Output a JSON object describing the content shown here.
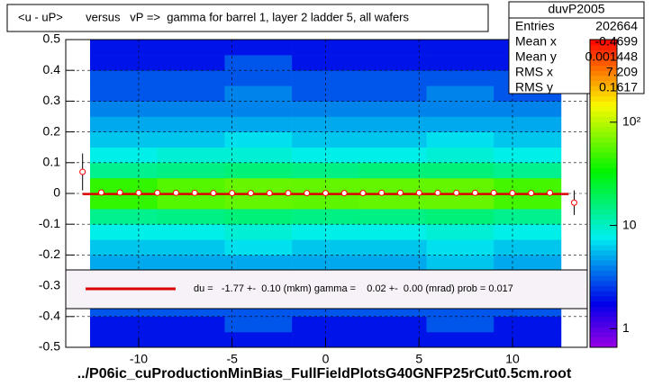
{
  "chart_data": {
    "type": "heatmap",
    "title": "<u - uP>       versus   vP =>  gamma for barrel 1, layer 2 ladder 5, all wafers",
    "x_label": "../P06ic_cuProductionMinBias_FullFieldPlotsG40GNFP25rCut0.5cm.root",
    "xlim": [
      -13.9,
      14.0
    ],
    "ylim": [
      -0.5,
      0.5
    ],
    "xticks": [
      -10,
      -5,
      0,
      5,
      10
    ],
    "yticks": [
      -0.5,
      -0.4,
      -0.3,
      -0.2,
      -0.1,
      0,
      0.1,
      0.2,
      0.3,
      0.4,
      0.5
    ],
    "grid": true,
    "zlim": [
      0.66,
      631
    ],
    "zlog": true,
    "zticks": [
      1,
      10,
      {
        "value": 100,
        "label": "10²"
      }
    ],
    "x_bins": [
      -12.6,
      -9,
      -5.4,
      -1.8,
      1.8,
      5.4,
      9,
      12.6
    ],
    "y_bins": [
      -0.5,
      -0.45,
      -0.4,
      -0.35,
      -0.3,
      -0.25,
      -0.2,
      -0.15,
      -0.1,
      -0.05,
      0,
      0.05,
      0.1,
      0.15,
      0.2,
      0.25,
      0.3,
      0.35,
      0.4,
      0.45,
      0.5
    ],
    "z": [
      [
        2,
        2,
        2,
        2,
        2,
        2,
        2
      ],
      [
        2,
        2,
        3,
        2,
        2,
        3,
        2
      ],
      [
        3,
        3,
        3,
        3,
        3,
        3,
        3
      ],
      [
        3,
        3,
        4,
        4,
        3,
        4,
        3
      ],
      [
        4,
        4,
        4,
        4,
        4,
        4,
        4
      ],
      [
        5,
        5,
        5,
        5,
        5,
        6,
        5
      ],
      [
        6,
        6,
        7,
        6,
        6,
        7,
        6
      ],
      [
        8,
        8,
        9,
        8,
        8,
        9,
        8
      ],
      [
        14,
        15,
        16,
        15,
        15,
        16,
        14
      ],
      [
        45,
        55,
        60,
        58,
        60,
        62,
        50
      ],
      [
        45,
        55,
        62,
        60,
        60,
        60,
        50
      ],
      [
        14,
        15,
        16,
        15,
        16,
        16,
        14
      ],
      [
        8,
        9,
        9,
        8,
        8,
        9,
        8
      ],
      [
        6,
        6,
        7,
        6,
        6,
        7,
        6
      ],
      [
        5,
        5,
        5,
        5,
        5,
        5,
        5
      ],
      [
        4,
        4,
        4,
        4,
        4,
        4,
        4
      ],
      [
        3,
        3,
        4,
        3,
        3,
        4,
        3
      ],
      [
        3,
        3,
        3,
        3,
        3,
        3,
        3
      ],
      [
        2,
        2,
        3,
        2,
        2,
        2,
        2
      ],
      [
        2,
        2,
        2,
        2,
        2,
        2,
        2
      ]
    ],
    "profile": {
      "color": "#ff0000",
      "x": [
        -13,
        -12,
        -11,
        -10,
        -9,
        -8,
        -7,
        -6,
        -5,
        -4,
        -3,
        -2,
        -1,
        0,
        1,
        2,
        3,
        4,
        5,
        6,
        7,
        8,
        9,
        10,
        11,
        12,
        13.3
      ],
      "values": [
        0.07,
        0.003,
        0.003,
        0.002,
        0.002,
        0.002,
        0.002,
        0.001,
        0.001,
        0.001,
        0.001,
        0.001,
        0.001,
        0.001,
        0.001,
        0.001,
        0.002,
        0.002,
        0.002,
        0.002,
        0.002,
        0.002,
        0.002,
        0.001,
        0.001,
        0.002,
        -0.03
      ],
      "errors": [
        0.06,
        0.004,
        0.003,
        0.003,
        0.003,
        0.003,
        0.003,
        0.003,
        0.003,
        0.003,
        0.003,
        0.003,
        0.003,
        0.003,
        0.003,
        0.003,
        0.003,
        0.003,
        0.003,
        0.003,
        0.003,
        0.003,
        0.003,
        0.003,
        0.003,
        0.004,
        0.04
      ]
    },
    "fit_line": {
      "color": "#dd0000",
      "x": [
        -13,
        13
      ],
      "values": [
        -0.002,
        -0.002
      ]
    },
    "fit_text": "du =   -1.77 +-  0.10 (mkm) gamma =    0.02 +-  0.00 (mrad) prob = 0.017",
    "stats": {
      "title": "duvP2005",
      "rows": [
        [
          "Entries",
          202664
        ],
        [
          "Mean x",
          -0.4699
        ],
        [
          "Mean y",
          0.001448
        ],
        [
          "RMS x",
          7.209
        ],
        [
          "RMS y",
          0.1617
        ]
      ]
    }
  }
}
